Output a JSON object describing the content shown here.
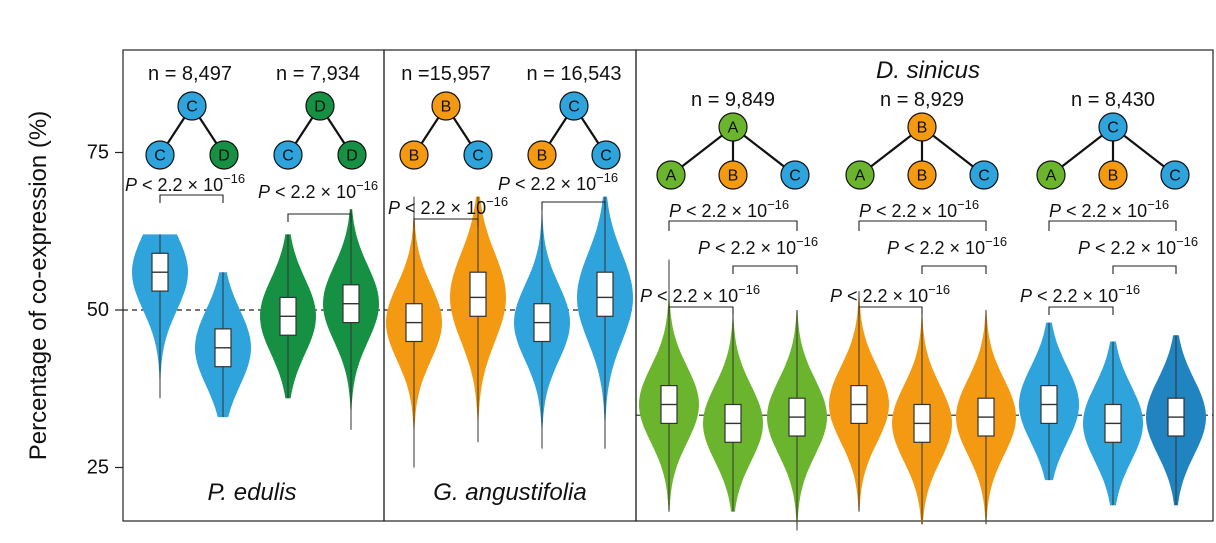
{
  "chart_data": {
    "type": "violin",
    "ylabel": "Percentage of co-expression (%)",
    "ylim": [
      15,
      93
    ],
    "yticks": [
      25,
      50,
      75
    ],
    "colors": {
      "A": "#6ab42e",
      "B": "#f39a12",
      "C": "#2ea3dc",
      "D": "#169143",
      "C_dark": "#1f84c0"
    },
    "panels": [
      {
        "species": "P. edulis",
        "reference_line": 50,
        "groups": [
          {
            "n_label": "n = 8,497",
            "tree": {
              "root": "C",
              "children": [
                "C",
                "D"
              ]
            },
            "pvalue": "P < 2.2 × 10⁻¹⁶",
            "violins": [
              {
                "node": "C",
                "q1": 53,
                "median": 56,
                "q3": 59,
                "min": 36,
                "max": 62
              },
              {
                "node": "C",
                "q1": 41,
                "median": 44,
                "q3": 47,
                "min": 33,
                "max": 56
              }
            ]
          },
          {
            "n_label": "n = 7,934",
            "tree": {
              "root": "D",
              "children": [
                "C",
                "D"
              ]
            },
            "pvalue": "P < 2.2 × 10⁻¹⁶",
            "violins": [
              {
                "node": "D",
                "q1": 46,
                "median": 49,
                "q3": 52,
                "min": 36,
                "max": 62
              },
              {
                "node": "D",
                "q1": 48,
                "median": 51,
                "q3": 54,
                "min": 31,
                "max": 66
              }
            ]
          }
        ]
      },
      {
        "species": "G. angustifolia",
        "reference_line": 50,
        "groups": [
          {
            "n_label": "n =15,957",
            "tree": {
              "root": "B",
              "children": [
                "B",
                "C"
              ]
            },
            "pvalue": "P < 2.2 × 10⁻¹⁶",
            "violins": [
              {
                "node": "B",
                "q1": 45,
                "median": 48,
                "q3": 51,
                "min": 25,
                "max": 68
              },
              {
                "node": "B",
                "q1": 49,
                "median": 52,
                "q3": 56,
                "min": 29,
                "max": 68
              }
            ]
          },
          {
            "n_label": "n = 16,543",
            "tree": {
              "root": "C",
              "children": [
                "B",
                "C"
              ]
            },
            "pvalue": "P < 2.2 × 10⁻¹⁶",
            "violins": [
              {
                "node": "C",
                "q1": 45,
                "median": 48,
                "q3": 51,
                "min": 28,
                "max": 66
              },
              {
                "node": "C",
                "q1": 49,
                "median": 52,
                "q3": 56,
                "min": 28,
                "max": 68
              }
            ]
          }
        ]
      },
      {
        "species": "D. sinicus",
        "reference_line": 33.3,
        "groups": [
          {
            "n_label": "n = 9,849",
            "tree": {
              "root": "A",
              "children": [
                "A",
                "B",
                "C"
              ]
            },
            "pvalue_top": "P < 2.2 × 10⁻¹⁶",
            "pvalue_mid": "P < 2.2 × 10⁻¹⁶",
            "pvalue_low": "P < 2.2 × 10⁻¹⁶",
            "violins": [
              {
                "node": "A",
                "q1": 32,
                "median": 35,
                "q3": 38,
                "min": 18,
                "max": 58
              },
              {
                "node": "A",
                "q1": 29,
                "median": 32,
                "q3": 35,
                "min": 18,
                "max": 50
              },
              {
                "node": "A",
                "q1": 30,
                "median": 33,
                "q3": 36,
                "min": 15,
                "max": 50
              }
            ]
          },
          {
            "n_label": "n = 8,929",
            "tree": {
              "root": "B",
              "children": [
                "A",
                "B",
                "C"
              ]
            },
            "pvalue_top": "P < 2.2 × 10⁻¹⁶",
            "pvalue_mid": "P < 2.2 × 10⁻¹⁶",
            "pvalue_low": "P < 2.2 × 10⁻¹⁶",
            "violins": [
              {
                "node": "B",
                "q1": 32,
                "median": 35,
                "q3": 38,
                "min": 18,
                "max": 53
              },
              {
                "node": "B",
                "q1": 29,
                "median": 32,
                "q3": 35,
                "min": 16,
                "max": 50
              },
              {
                "node": "B",
                "q1": 30,
                "median": 33,
                "q3": 36,
                "min": 16,
                "max": 50
              }
            ]
          },
          {
            "n_label": "n = 8,430",
            "tree": {
              "root": "C",
              "children": [
                "A",
                "B",
                "C"
              ]
            },
            "pvalue_top": "P < 2.2 × 10⁻¹⁶",
            "pvalue_mid": "P < 2.2 × 10⁻¹⁶",
            "pvalue_low": "P < 2.2 × 10⁻¹⁶",
            "violins": [
              {
                "node": "C",
                "q1": 32,
                "median": 35,
                "q3": 38,
                "min": 23,
                "max": 48
              },
              {
                "node": "C",
                "q1": 29,
                "median": 32,
                "q3": 35,
                "min": 19,
                "max": 45
              },
              {
                "node": "C_dark",
                "q1": 30,
                "median": 33,
                "q3": 36,
                "min": 19,
                "max": 46
              }
            ]
          }
        ]
      }
    ]
  }
}
